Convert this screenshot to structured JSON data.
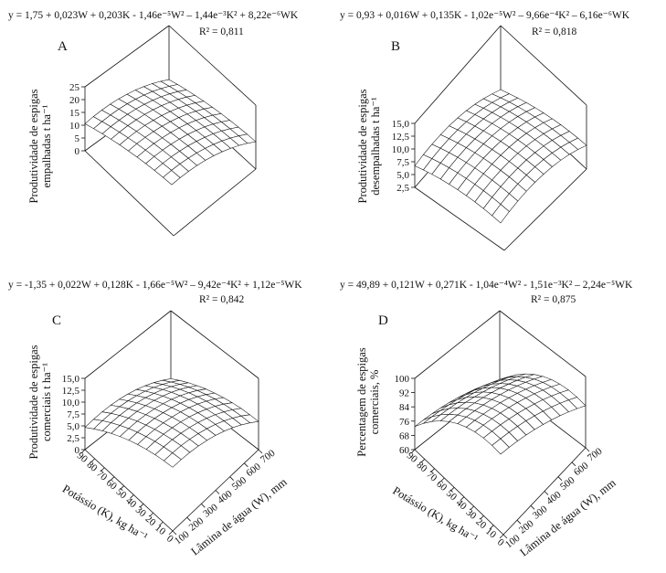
{
  "chart_data": [
    {
      "type": "surface",
      "panel": "A",
      "equation": "y = 1,75 + 0,023W + 0,203K - 1,46e⁻⁵W² – 1,44e⁻³K² + 8,22e⁻⁶WK",
      "r2": "R² = 0,811",
      "zlabel": [
        "Produtividade de espigas",
        "empalhadas t ha⁻¹"
      ],
      "zticks": [
        "0",
        "5",
        "10",
        "15",
        "20",
        "25"
      ],
      "zlim": [
        0,
        25
      ],
      "coef": {
        "c0": 1.75,
        "w": 0.023,
        "k": 0.203,
        "ww": -1.46e-05,
        "kk": -0.00144,
        "wk": 8.22e-06
      },
      "xlabel": "",
      "ylabel": "",
      "xticks": [],
      "yticks": []
    },
    {
      "type": "surface",
      "panel": "B",
      "equation": "y = 0,93 + 0,016W + 0,135K - 1,02e⁻⁵W² – 9,66e⁻⁴K² – 6,16e⁻⁶WK",
      "r2": "R² = 0,818",
      "zlabel": [
        "Produtividade de espigas",
        "desempalhadas t ha⁻¹"
      ],
      "zticks": [
        "2,5",
        "5,0",
        "7,5",
        "10,0",
        "12,5",
        "15,0"
      ],
      "zlim": [
        2.5,
        15
      ],
      "coef": {
        "c0": 0.93,
        "w": 0.016,
        "k": 0.135,
        "ww": -1.02e-05,
        "kk": -0.000966,
        "wk": -6.16e-06
      },
      "xlabel": "",
      "ylabel": "",
      "xticks": [],
      "yticks": []
    },
    {
      "type": "surface",
      "panel": "C",
      "equation": "y = -1,35 + 0,022W + 0,128K - 1,66e⁻⁵W² – 9,42e⁻⁴K² + 1,12e⁻⁵WK",
      "r2": "R² = 0,842",
      "zlabel": [
        "Produtividade de espigas",
        "comerciais t ha⁻¹"
      ],
      "zticks": [
        "0",
        "2,5",
        "5,0",
        "7,5",
        "10,0",
        "12,5",
        "15,0"
      ],
      "zlim": [
        0,
        15
      ],
      "coef": {
        "c0": -1.35,
        "w": 0.022,
        "k": 0.128,
        "ww": -1.66e-05,
        "kk": -0.000942,
        "wk": 1.12e-05
      },
      "xlabel": "Lâmina de água (W), mm",
      "ylabel": "Potássio (K), kg ha⁻¹",
      "xticks": [
        "100",
        "200",
        "300",
        "400",
        "500",
        "600",
        "700"
      ],
      "yticks": [
        "0",
        "10",
        "20",
        "30",
        "40",
        "50",
        "60",
        "70",
        "80",
        "90"
      ]
    },
    {
      "type": "surface",
      "panel": "D",
      "equation": "y = 49,89 + 0,121W + 0,271K - 1,04e⁻⁴W² - 1,51e⁻³K² – 2,24e⁻⁵WK",
      "r2": "R² = 0,875",
      "zlabel": [
        "Percentagem de espigas",
        "comerciais, %"
      ],
      "zticks": [
        "60",
        "68",
        "76",
        "84",
        "92",
        "100"
      ],
      "zlim": [
        60,
        100
      ],
      "coef": {
        "c0": 49.89,
        "w": 0.121,
        "k": 0.271,
        "ww": -0.000104,
        "kk": -0.00151,
        "wk": -2.24e-05
      },
      "xlabel": "Lâmina de água (W), mm",
      "ylabel": "Potássio (K), kg ha⁻¹",
      "xticks": [
        "100",
        "200",
        "300",
        "400",
        "500",
        "600",
        "700"
      ],
      "yticks": [
        "0",
        "10",
        "20",
        "30",
        "40",
        "50",
        "60",
        "70",
        "80",
        "90"
      ]
    }
  ]
}
